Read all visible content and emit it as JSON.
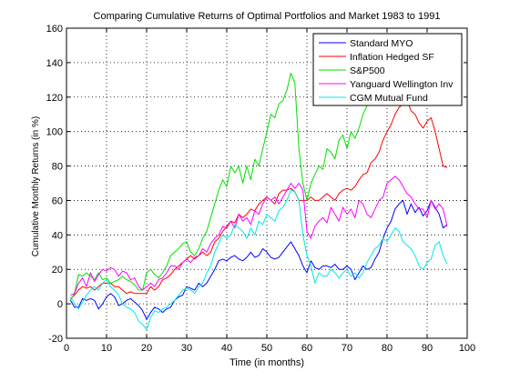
{
  "chart_data": {
    "type": "line",
    "title": "Comparing Cumulative Returns of Optimal Portfolios and Market 1983 to 1991",
    "xlabel": "Time (in months)",
    "ylabel": "Cumulative Monthly Returns (in %)",
    "xlim": [
      0,
      100
    ],
    "ylim": [
      -20,
      160
    ],
    "xticks": [
      0,
      10,
      20,
      30,
      40,
      50,
      60,
      70,
      80,
      90,
      100
    ],
    "yticks": [
      -20,
      0,
      20,
      40,
      60,
      80,
      100,
      120,
      140,
      160
    ],
    "grid": true,
    "legend_position": "top-right",
    "series": [
      {
        "name": "Standard MYO",
        "color": "#0000ff",
        "x": [
          1,
          2,
          3,
          4,
          5,
          6,
          7,
          8,
          9,
          10,
          11,
          12,
          13,
          14,
          15,
          16,
          17,
          18,
          19,
          20,
          21,
          22,
          23,
          24,
          25,
          26,
          27,
          28,
          29,
          30,
          31,
          32,
          33,
          34,
          35,
          36,
          37,
          38,
          39,
          40,
          41,
          42,
          43,
          44,
          45,
          46,
          47,
          48,
          49,
          50,
          51,
          52,
          53,
          54,
          55,
          56,
          57,
          58,
          59,
          60,
          61,
          62,
          63,
          64,
          65,
          66,
          67,
          68,
          69,
          70,
          71,
          72,
          73,
          74,
          75,
          76,
          77,
          78,
          79,
          80,
          81,
          82,
          83,
          84,
          85,
          86,
          87,
          88,
          89,
          90,
          91,
          92,
          93,
          94,
          95
        ],
        "y": [
          2,
          -2,
          -2,
          3,
          2,
          3,
          2,
          -3,
          0,
          4,
          6,
          4,
          -1,
          0,
          2,
          3,
          1,
          -1,
          -4,
          -9,
          -5,
          -2,
          -3,
          -5,
          -3,
          -2,
          2,
          4,
          5,
          10,
          9,
          8,
          12,
          10,
          12,
          16,
          20,
          25,
          26,
          25,
          27,
          28,
          26,
          25,
          27,
          30,
          27,
          28,
          32,
          30,
          27,
          26,
          27,
          30,
          33,
          36,
          32,
          28,
          22,
          18,
          25,
          21,
          20,
          22,
          22,
          21,
          23,
          20,
          20,
          22,
          20,
          14,
          18,
          22,
          20,
          21,
          26,
          30,
          38,
          44,
          48,
          55,
          58,
          60,
          52,
          58,
          53,
          56,
          51,
          54,
          60,
          56,
          52,
          44,
          46
        ]
      },
      {
        "name": "Inflation Hedged SF",
        "color": "#ff0000",
        "x": [
          1,
          2,
          3,
          4,
          5,
          6,
          7,
          8,
          9,
          10,
          11,
          12,
          13,
          14,
          15,
          16,
          17,
          18,
          19,
          20,
          21,
          22,
          23,
          24,
          25,
          26,
          27,
          28,
          29,
          30,
          31,
          32,
          33,
          34,
          35,
          36,
          37,
          38,
          39,
          40,
          41,
          42,
          43,
          44,
          45,
          46,
          47,
          48,
          49,
          50,
          51,
          52,
          53,
          54,
          55,
          56,
          57,
          58,
          59,
          60,
          61,
          62,
          63,
          64,
          65,
          66,
          67,
          68,
          69,
          70,
          71,
          72,
          73,
          74,
          75,
          76,
          77,
          78,
          79,
          80,
          81,
          82,
          83,
          84,
          85,
          86,
          87,
          88,
          89,
          90,
          91,
          92,
          93,
          94,
          95
        ],
        "y": [
          3,
          5,
          8,
          10,
          9,
          10,
          8,
          10,
          12,
          12,
          12,
          10,
          10,
          8,
          6,
          7,
          6,
          6,
          6,
          6,
          10,
          8,
          10,
          14,
          15,
          17,
          20,
          22,
          24,
          26,
          28,
          26,
          28,
          30,
          28,
          30,
          36,
          38,
          42,
          45,
          48,
          47,
          52,
          50,
          52,
          55,
          54,
          58,
          60,
          62,
          60,
          58,
          64,
          66,
          66,
          67,
          65,
          60,
          60,
          60,
          62,
          60,
          60,
          62,
          64,
          62,
          60,
          64,
          66,
          67,
          66,
          68,
          72,
          75,
          76,
          82,
          84,
          88,
          95,
          100,
          104,
          110,
          114,
          116,
          118,
          112,
          110,
          105,
          102,
          106,
          108,
          100,
          90,
          80,
          79
        ]
      },
      {
        "name": "S&P500",
        "color": "#00e000",
        "x": [
          1,
          2,
          3,
          4,
          5,
          6,
          7,
          8,
          9,
          10,
          11,
          12,
          13,
          14,
          15,
          16,
          17,
          18,
          19,
          20,
          21,
          22,
          23,
          24,
          25,
          26,
          27,
          28,
          29,
          30,
          31,
          32,
          33,
          34,
          35,
          36,
          37,
          38,
          39,
          40,
          41,
          42,
          43,
          44,
          45,
          46,
          47,
          48,
          49,
          50,
          51,
          52,
          53,
          54,
          55,
          56,
          57,
          58,
          59,
          60,
          61,
          62,
          63,
          64,
          65,
          66,
          67,
          68,
          69,
          70,
          71,
          72,
          73,
          74,
          75,
          76,
          77,
          78,
          79,
          80,
          81,
          82,
          83,
          84,
          85,
          86,
          87,
          88,
          89,
          90,
          91,
          92,
          93,
          94,
          95
        ],
        "y": [
          2,
          6,
          17,
          16,
          18,
          16,
          14,
          18,
          14,
          15,
          12,
          13,
          14,
          16,
          14,
          13,
          11,
          8,
          8,
          18,
          20,
          17,
          15,
          18,
          22,
          28,
          30,
          32,
          35,
          36,
          30,
          28,
          32,
          38,
          42,
          50,
          58,
          66,
          72,
          68,
          80,
          76,
          80,
          70,
          80,
          72,
          84,
          80,
          90,
          100,
          110,
          108,
          116,
          118,
          124,
          134,
          128,
          90,
          70,
          60,
          70,
          75,
          80,
          78,
          90,
          88,
          84,
          95,
          98,
          90,
          100,
          96,
          102,
          110,
          115,
          120,
          124,
          130,
          135,
          140,
          142,
          145,
          148,
          150,
          148,
          146,
          150,
          148,
          150,
          148,
          150,
          150,
          150,
          150,
          150
        ]
      },
      {
        "name": "Yanguard Wellington Inv",
        "color": "#ff00ff",
        "x": [
          1,
          2,
          3,
          4,
          5,
          6,
          7,
          8,
          9,
          10,
          11,
          12,
          13,
          14,
          15,
          16,
          17,
          18,
          19,
          20,
          21,
          22,
          23,
          24,
          25,
          26,
          27,
          28,
          29,
          30,
          31,
          32,
          33,
          34,
          35,
          36,
          37,
          38,
          39,
          40,
          41,
          42,
          43,
          44,
          45,
          46,
          47,
          48,
          49,
          50,
          51,
          52,
          53,
          54,
          55,
          56,
          57,
          58,
          59,
          60,
          61,
          62,
          63,
          64,
          65,
          66,
          67,
          68,
          69,
          70,
          71,
          72,
          73,
          74,
          75,
          76,
          77,
          78,
          79,
          80,
          81,
          82,
          83,
          84,
          85,
          86,
          87,
          88,
          89,
          90,
          91,
          92,
          93,
          94,
          95
        ],
        "y": [
          5,
          6,
          12,
          15,
          10,
          18,
          13,
          17,
          20,
          19,
          21,
          20,
          16,
          19,
          18,
          14,
          15,
          10,
          8,
          10,
          12,
          10,
          14,
          15,
          18,
          22,
          22,
          20,
          24,
          26,
          24,
          27,
          28,
          32,
          30,
          35,
          38,
          40,
          45,
          44,
          48,
          44,
          52,
          48,
          50,
          46,
          54,
          52,
          58,
          62,
          60,
          62,
          58,
          62,
          66,
          70,
          67,
          70,
          66,
          42,
          38,
          45,
          48,
          50,
          47,
          56,
          52,
          48,
          56,
          52,
          55,
          50,
          60,
          58,
          52,
          50,
          55,
          60,
          62,
          70,
          72,
          74,
          72,
          68,
          64,
          62,
          58,
          55,
          55,
          50,
          60,
          55,
          58,
          55,
          45
        ]
      },
      {
        "name": "CGM Mutual Fund",
        "color": "#00e8e8",
        "x": [
          1,
          2,
          3,
          4,
          5,
          6,
          7,
          8,
          9,
          10,
          11,
          12,
          13,
          14,
          15,
          16,
          17,
          18,
          19,
          20,
          21,
          22,
          23,
          24,
          25,
          26,
          27,
          28,
          29,
          30,
          31,
          32,
          33,
          34,
          35,
          36,
          37,
          38,
          39,
          40,
          41,
          42,
          43,
          44,
          45,
          46,
          47,
          48,
          49,
          50,
          51,
          52,
          53,
          54,
          55,
          56,
          57,
          58,
          59,
          60,
          61,
          62,
          63,
          64,
          65,
          66,
          67,
          68,
          69,
          70,
          71,
          72,
          73,
          74,
          75,
          76,
          77,
          78,
          79,
          80,
          81,
          82,
          83,
          84,
          85,
          86,
          87,
          88,
          89,
          90,
          91,
          92,
          93,
          94,
          95
        ],
        "y": [
          4,
          0,
          -3,
          1,
          5,
          8,
          10,
          8,
          12,
          14,
          10,
          8,
          5,
          0,
          -2,
          -3,
          -5,
          -10,
          -12,
          -15,
          -8,
          -4,
          -5,
          -3,
          -2,
          0,
          2,
          5,
          8,
          9,
          8,
          6,
          10,
          12,
          18,
          22,
          30,
          35,
          40,
          38,
          40,
          46,
          44,
          42,
          38,
          44,
          40,
          48,
          46,
          52,
          50,
          48,
          54,
          56,
          60,
          66,
          65,
          60,
          40,
          28,
          22,
          12,
          18,
          16,
          16,
          20,
          18,
          15,
          18,
          20,
          16,
          18,
          15,
          18,
          24,
          28,
          32,
          34,
          38,
          36,
          40,
          44,
          42,
          36,
          34,
          32,
          28,
          22,
          20,
          24,
          26,
          34,
          36,
          28,
          23
        ]
      }
    ]
  }
}
